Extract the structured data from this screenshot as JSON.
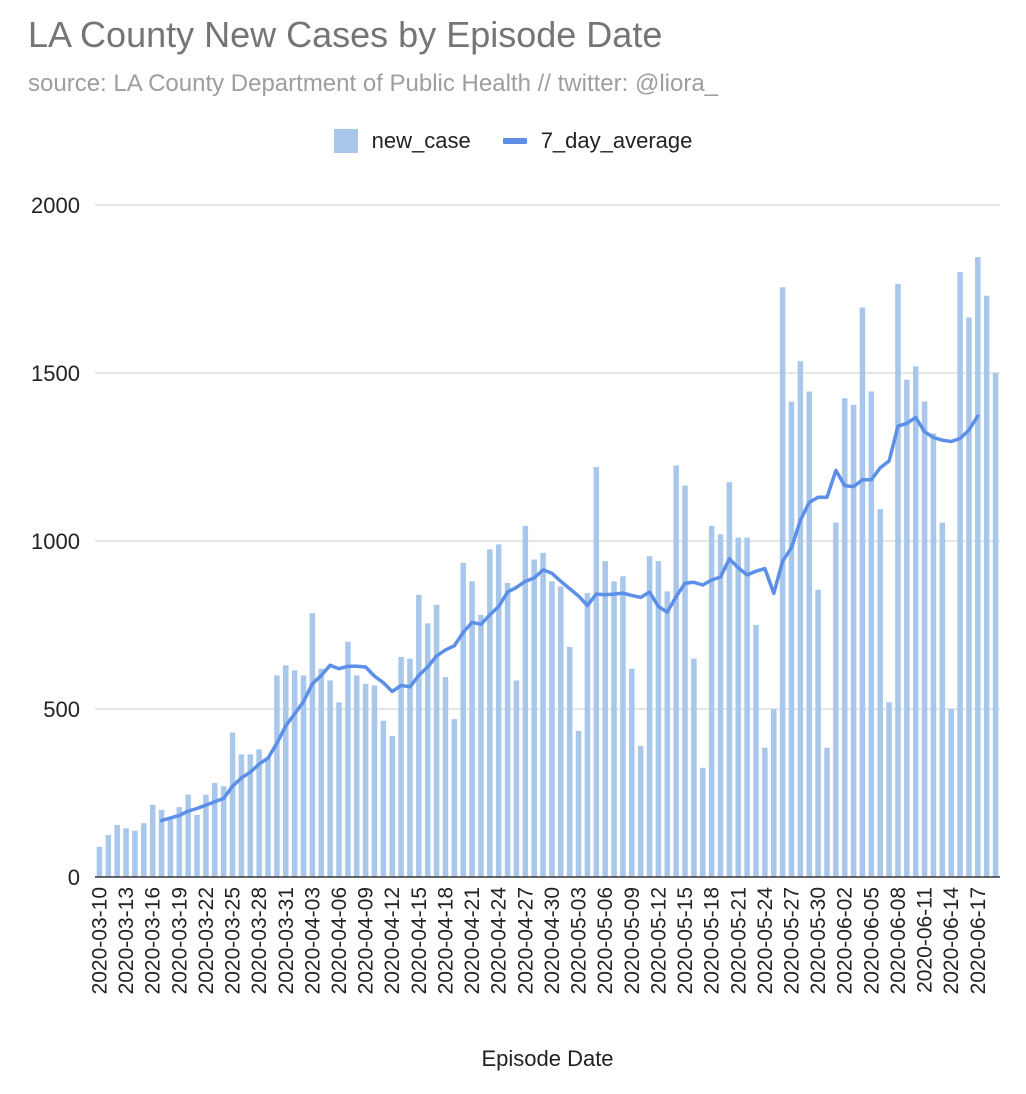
{
  "chart_data": {
    "type": "bar",
    "title": "LA County New Cases by Episode Date",
    "subtitle": "source: LA County Department of Public Health // twitter: @liora_",
    "xlabel": "Episode Date",
    "ylabel": "",
    "ylim": [
      0,
      2000
    ],
    "yticks": [
      "0",
      "500",
      "1000",
      "1500",
      "2000"
    ],
    "grid": true,
    "legend_position": "top-center",
    "colors": {
      "bars": "#a8c7ea",
      "line": "#5b8fe8",
      "grid": "#cccccc",
      "axis": "#333333"
    },
    "start_date": "2020-03-10",
    "x_tick_labels": [
      "2020-03-10",
      "2020-03-13",
      "2020-03-16",
      "2020-03-19",
      "2020-03-22",
      "2020-03-25",
      "2020-03-28",
      "2020-03-31",
      "2020-04-03",
      "2020-04-06",
      "2020-04-09",
      "2020-04-12",
      "2020-04-15",
      "2020-04-18",
      "2020-04-21",
      "2020-04-24",
      "2020-04-27",
      "2020-04-30",
      "2020-05-03",
      "2020-05-06",
      "2020-05-09",
      "2020-05-12",
      "2020-05-15",
      "2020-05-18",
      "2020-05-21",
      "2020-05-24",
      "2020-05-27",
      "2020-05-30",
      "2020-06-02",
      "2020-06-05",
      "2020-06-08",
      "2020-06-11",
      "2020-06-14",
      "2020-06-17"
    ],
    "series": [
      {
        "name": "new_case",
        "kind": "bar",
        "values": [
          90,
          125,
          155,
          145,
          138,
          160,
          215,
          200,
          175,
          208,
          245,
          185,
          245,
          280,
          270,
          430,
          365,
          365,
          380,
          355,
          600,
          630,
          615,
          600,
          785,
          620,
          585,
          520,
          700,
          600,
          575,
          570,
          465,
          420,
          655,
          650,
          840,
          755,
          810,
          595,
          470,
          935,
          880,
          780,
          975,
          990,
          875,
          585,
          1045,
          945,
          965,
          880,
          865,
          685,
          435,
          845,
          1220,
          940,
          880,
          895,
          620,
          390,
          955,
          940,
          850,
          1225,
          1165,
          650,
          325,
          1045,
          1020,
          1175,
          1010,
          1010,
          750,
          385,
          500,
          1755,
          1415,
          1535,
          1445,
          855,
          385,
          1055,
          1425,
          1405,
          1695,
          1445,
          1095,
          520,
          1765,
          1480,
          1520,
          1415,
          1320,
          1055,
          500,
          1800,
          1665,
          1845,
          1730,
          1500
        ]
      },
      {
        "name": "7_day_average",
        "kind": "line",
        "start_index": 7,
        "values": [
          168,
          176,
          183,
          196,
          204,
          214,
          224,
          234,
          270,
          295,
          312,
          336,
          354,
          398,
          450,
          485,
          522,
          575,
          600,
          630,
          620,
          627,
          627,
          625,
          598,
          578,
          552,
          570,
          566,
          600,
          625,
          658,
          676,
          688,
          728,
          758,
          752,
          780,
          805,
          848,
          862,
          880,
          890,
          914,
          904,
          880,
          858,
          836,
          808,
          842,
          840,
          842,
          845,
          838,
          832,
          848,
          805,
          788,
          835,
          874,
          877,
          869,
          884,
          893,
          947,
          920,
          899,
          910,
          918,
          844,
          940,
          980,
          1062,
          1115,
          1130,
          1130,
          1210,
          1165,
          1162,
          1182,
          1182,
          1218,
          1238,
          1342,
          1350,
          1368,
          1325,
          1308,
          1300,
          1296,
          1305,
          1330,
          1372
        ]
      }
    ]
  }
}
